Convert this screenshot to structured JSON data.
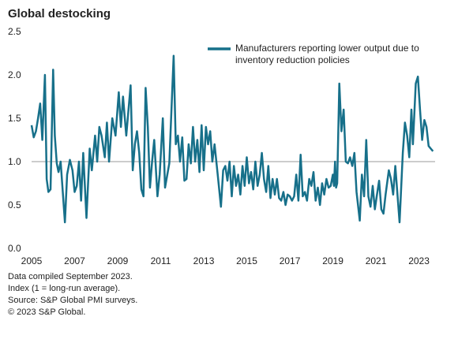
{
  "chart_data": {
    "type": "line",
    "title": "Global destocking",
    "xlim": [
      2005,
      2023.75
    ],
    "xticks": [
      2005,
      2007,
      2009,
      2011,
      2013,
      2015,
      2017,
      2019,
      2021,
      2023
    ],
    "ylim": [
      0,
      2.5
    ],
    "yticks": [
      {
        "value": 0,
        "label": "0.0"
      },
      0.5,
      {
        "value": 1,
        "label": "1.0"
      },
      1.5,
      {
        "value": 2,
        "label": "2.0"
      },
      2.5
    ],
    "reference_line": 1,
    "series": [
      {
        "name": "Manufacturers reporting lower output due to inventory reduction policies",
        "color": "#17708a",
        "x": [
          2005.0,
          2005.1,
          2005.2,
          2005.3,
          2005.4,
          2005.5,
          2005.62,
          2005.7,
          2005.78,
          2005.88,
          2006.0,
          2006.08,
          2006.17,
          2006.25,
          2006.35,
          2006.55,
          2006.65,
          2006.78,
          2006.9,
          2007.0,
          2007.1,
          2007.2,
          2007.3,
          2007.4,
          2007.55,
          2007.7,
          2007.8,
          2007.95,
          2008.05,
          2008.15,
          2008.25,
          2008.4,
          2008.5,
          2008.6,
          2008.75,
          2008.9,
          2009.05,
          2009.15,
          2009.25,
          2009.4,
          2009.6,
          2009.7,
          2009.8,
          2009.9,
          2010.0,
          2010.1,
          2010.2,
          2010.3,
          2010.4,
          2010.5,
          2010.6,
          2010.7,
          2010.85,
          2010.95,
          2011.1,
          2011.2,
          2011.4,
          2011.6,
          2011.7,
          2011.8,
          2011.9,
          2012.0,
          2012.1,
          2012.2,
          2012.3,
          2012.4,
          2012.5,
          2012.6,
          2012.7,
          2012.8,
          2012.9,
          2013.0,
          2013.1,
          2013.2,
          2013.3,
          2013.4,
          2013.5,
          2013.65,
          2013.8,
          2013.9,
          2014.0,
          2014.1,
          2014.2,
          2014.3,
          2014.4,
          2014.5,
          2014.6,
          2014.7,
          2014.8,
          2014.9,
          2015.0,
          2015.1,
          2015.2,
          2015.3,
          2015.4,
          2015.5,
          2015.6,
          2015.7,
          2015.8,
          2015.9,
          2016.0,
          2016.1,
          2016.2,
          2016.3,
          2016.4,
          2016.5,
          2016.6,
          2016.7,
          2016.8,
          2016.9,
          2017.0,
          2017.1,
          2017.2,
          2017.3,
          2017.4,
          2017.5,
          2017.6,
          2017.7,
          2017.8,
          2017.9,
          2018.0,
          2018.1,
          2018.2,
          2018.3,
          2018.4,
          2018.5,
          2018.6,
          2018.7,
          2018.8,
          2018.9,
          2019.0,
          2019.05,
          2019.1,
          2019.15,
          2019.2,
          2019.3,
          2019.4,
          2019.5,
          2019.6,
          2019.7,
          2019.8,
          2019.9,
          2020.0,
          2020.1,
          2020.25,
          2020.35,
          2020.45,
          2020.55,
          2020.65,
          2020.75,
          2020.85,
          2020.95,
          2021.05,
          2021.15,
          2021.25,
          2021.35,
          2021.45,
          2021.6,
          2021.7,
          2021.8,
          2021.9,
          2022.1,
          2022.25,
          2022.35,
          2022.45,
          2022.55,
          2022.65,
          2022.72,
          2022.85,
          2022.95,
          2023.05,
          2023.15,
          2023.25,
          2023.35,
          2023.45,
          2023.55,
          2023.65
        ],
        "values": [
          1.42,
          1.28,
          1.35,
          1.5,
          1.67,
          1.25,
          2.0,
          0.8,
          0.65,
          0.68,
          2.06,
          1.3,
          0.98,
          0.88,
          1.0,
          0.3,
          0.85,
          1.02,
          0.9,
          0.65,
          0.72,
          1.0,
          0.55,
          1.1,
          0.35,
          1.15,
          0.9,
          1.3,
          1.0,
          1.4,
          1.3,
          1.05,
          1.45,
          1.0,
          1.5,
          1.3,
          1.8,
          1.4,
          1.75,
          1.3,
          1.88,
          0.9,
          1.2,
          1.35,
          1.1,
          0.68,
          0.6,
          1.85,
          1.4,
          0.7,
          1.0,
          1.25,
          0.6,
          0.85,
          1.5,
          0.7,
          0.98,
          2.22,
          1.2,
          1.3,
          1.0,
          1.28,
          0.78,
          0.8,
          1.2,
          0.98,
          1.4,
          1.0,
          1.25,
          0.88,
          1.42,
          0.9,
          1.4,
          1.2,
          1.35,
          1.0,
          1.2,
          0.85,
          0.48,
          0.9,
          0.95,
          0.78,
          1.0,
          0.6,
          0.95,
          0.72,
          0.85,
          0.62,
          0.95,
          0.72,
          1.05,
          0.75,
          0.88,
          0.68,
          1.0,
          0.72,
          0.85,
          1.1,
          0.8,
          0.65,
          0.95,
          0.58,
          0.8,
          0.62,
          0.8,
          0.58,
          0.55,
          0.65,
          0.5,
          0.62,
          0.6,
          0.55,
          0.6,
          0.85,
          0.55,
          1.08,
          0.6,
          0.65,
          0.55,
          0.8,
          0.72,
          0.88,
          0.55,
          0.7,
          0.5,
          0.75,
          0.62,
          0.8,
          0.7,
          0.72,
          0.85,
          0.72,
          1.0,
          0.7,
          0.75,
          1.9,
          1.35,
          1.6,
          1.0,
          0.98,
          1.05,
          0.95,
          1.1,
          0.65,
          0.32,
          0.85,
          0.6,
          1.25,
          0.6,
          0.48,
          0.72,
          0.45,
          0.62,
          0.78,
          0.45,
          0.4,
          0.62,
          0.9,
          0.8,
          0.62,
          0.95,
          0.3,
          1.1,
          1.45,
          1.3,
          1.05,
          1.6,
          1.2,
          1.9,
          1.98,
          1.6,
          1.25,
          1.48,
          1.4,
          1.18,
          1.15,
          1.12
        ]
      }
    ],
    "notes": [
      "Data compiled September 2023.",
      "Index (1 = long-run average).",
      "Source: S&P Global PMI surveys.",
      "© 2023 S&P Global."
    ]
  }
}
